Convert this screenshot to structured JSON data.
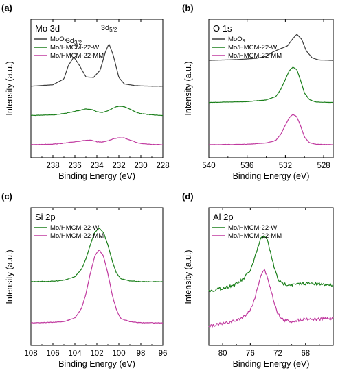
{
  "figure": {
    "colors": {
      "MoO3": "#3b3b3b",
      "WI": "#1a7f1a",
      "MM": "#c0399f"
    },
    "line_icon": "line-swatch-icon"
  },
  "chart_data": [
    {
      "panel_label": "(a)",
      "title": "Mo 3d",
      "type": "line",
      "xlabel": "Binding Energy (eV)",
      "ylabel": "Intensity (a.u.)",
      "xlim": [
        240,
        228
      ],
      "x_reversed": true,
      "x_ticks": [
        "238",
        "236",
        "234",
        "232",
        "230",
        "228"
      ],
      "y_ticks_shown": false,
      "legend": "top-left",
      "annotations": [
        {
          "text": "3d3/2",
          "main": "3d",
          "sub": "3/2",
          "x": 236.1
        },
        {
          "text": "3d5/2",
          "main": "3d",
          "sub": "5/2",
          "x": 232.9
        }
      ],
      "series": [
        {
          "name": "MoO3",
          "display_main": "MoO",
          "display_sub": "3",
          "color": "#3b3b3b",
          "x": [
            240,
            238,
            237,
            236.6,
            236.1,
            235.6,
            235.0,
            234.3,
            233.7,
            233.2,
            232.9,
            232.5,
            232.0,
            231.5,
            230.5,
            229,
            228
          ],
          "y": [
            2.0,
            2.05,
            2.25,
            2.7,
            3.0,
            2.72,
            2.32,
            2.3,
            2.55,
            3.2,
            3.45,
            3.05,
            2.3,
            2.08,
            2.02,
            2.0,
            2.0
          ]
        },
        {
          "name": "Mo/HMCM-22-WI",
          "color": "#1a7f1a",
          "x": [
            240,
            238,
            237,
            236,
            235,
            234.5,
            234,
            233.5,
            233,
            232.5,
            232,
            231.5,
            231,
            230.5,
            230,
            229,
            228
          ],
          "y": [
            1.0,
            1.02,
            1.06,
            1.14,
            1.22,
            1.2,
            1.13,
            1.1,
            1.16,
            1.26,
            1.32,
            1.3,
            1.22,
            1.12,
            1.06,
            1.02,
            1.0
          ]
        },
        {
          "name": "Mo/HMCM-22-MM",
          "color": "#c0399f",
          "x": [
            240,
            238,
            237,
            236,
            235,
            234.5,
            234,
            233.5,
            233,
            232.5,
            232,
            231.5,
            231,
            230.5,
            230,
            229,
            228
          ],
          "y": [
            0.0,
            0.02,
            0.05,
            0.1,
            0.15,
            0.15,
            0.1,
            0.09,
            0.13,
            0.2,
            0.24,
            0.23,
            0.16,
            0.09,
            0.04,
            0.01,
            0.0
          ]
        }
      ]
    },
    {
      "panel_label": "(b)",
      "title": "O 1s",
      "type": "line",
      "xlabel": "Binding Energy (eV)",
      "ylabel": "Intensity (a.u.)",
      "xlim": [
        540,
        527
      ],
      "x_reversed": true,
      "x_ticks": [
        "540",
        "536",
        "532",
        "528"
      ],
      "y_ticks_shown": false,
      "legend": "top-left",
      "series": [
        {
          "name": "MoO3",
          "display_main": "MoO",
          "display_sub": "3",
          "color": "#3b3b3b",
          "x": [
            540,
            537,
            535,
            534,
            533.3,
            532.5,
            531.8,
            531.2,
            530.8,
            530.3,
            529.8,
            529.2,
            528.5,
            527
          ],
          "y": [
            2.0,
            2.02,
            2.05,
            2.1,
            2.2,
            2.28,
            2.34,
            2.52,
            2.62,
            2.5,
            2.22,
            2.06,
            2.01,
            2.0
          ]
        },
        {
          "name": "Mo/HMCM-22-WI",
          "color": "#1a7f1a",
          "x": [
            540,
            536,
            534,
            533,
            532.5,
            532,
            531.6,
            531.2,
            530.8,
            530.4,
            530,
            529.5,
            528.8,
            527
          ],
          "y": [
            1.0,
            1.02,
            1.06,
            1.14,
            1.3,
            1.55,
            1.75,
            1.84,
            1.78,
            1.52,
            1.22,
            1.07,
            1.01,
            1.0
          ]
        },
        {
          "name": "Mo/HMCM-22-MM",
          "color": "#c0399f",
          "x": [
            540,
            536,
            534,
            533,
            532.5,
            532,
            531.6,
            531.2,
            530.8,
            530.4,
            530,
            529.5,
            528.8,
            527
          ],
          "y": [
            0.0,
            0.01,
            0.04,
            0.1,
            0.24,
            0.46,
            0.64,
            0.72,
            0.66,
            0.44,
            0.18,
            0.05,
            0.01,
            0.0
          ]
        }
      ]
    },
    {
      "panel_label": "(c)",
      "title": "Si 2p",
      "type": "line",
      "xlabel": "Binding Energy (eV)",
      "ylabel": "Intensity (a.u.)",
      "xlim": [
        108,
        96
      ],
      "x_reversed": true,
      "x_ticks": [
        "108",
        "106",
        "104",
        "102",
        "100",
        "98",
        "96"
      ],
      "y_ticks_shown": false,
      "legend": "top-left",
      "series": [
        {
          "name": "Mo/HMCM-22-WI",
          "color": "#1a7f1a",
          "x": [
            108,
            106,
            105,
            104,
            103.4,
            103,
            102.6,
            102.2,
            101.8,
            101.4,
            101,
            100.6,
            100.2,
            99.8,
            99,
            98,
            96
          ],
          "y": [
            1.0,
            1.01,
            1.04,
            1.12,
            1.3,
            1.55,
            1.9,
            2.2,
            2.3,
            2.2,
            1.9,
            1.5,
            1.2,
            1.07,
            1.02,
            1.0,
            1.0
          ]
        },
        {
          "name": "Mo/HMCM-22-MM",
          "color": "#c0399f",
          "x": [
            108,
            106,
            105,
            104,
            103.4,
            103,
            102.6,
            102.2,
            101.8,
            101.4,
            101,
            100.6,
            100.2,
            99.8,
            99,
            98,
            96
          ],
          "y": [
            0.0,
            0.01,
            0.03,
            0.12,
            0.35,
            0.7,
            1.2,
            1.62,
            1.78,
            1.62,
            1.2,
            0.68,
            0.3,
            0.1,
            0.03,
            0.0,
            0.0
          ]
        }
      ]
    },
    {
      "panel_label": "(d)",
      "title": "Al 2p",
      "type": "line",
      "xlabel": "Binding Energy (eV)",
      "ylabel": "Intensity (a.u.)",
      "xlim": [
        82,
        64
      ],
      "x_reversed": true,
      "x_ticks": [
        "80",
        "76",
        "72",
        "68"
      ],
      "y_ticks_shown": false,
      "legend": "top-left",
      "series": [
        {
          "name": "Mo/HMCM-22-WI",
          "color": "#1a7f1a",
          "x": [
            82,
            80,
            78,
            77,
            76,
            75.5,
            75,
            74.5,
            74,
            73.5,
            73,
            72.5,
            72,
            71.5,
            71,
            70,
            68,
            66,
            64
          ],
          "y": [
            1.0,
            1.08,
            1.2,
            1.35,
            1.6,
            1.85,
            2.2,
            2.5,
            2.62,
            2.45,
            2.05,
            1.65,
            1.35,
            1.22,
            1.2,
            1.18,
            1.22,
            1.2,
            1.18
          ]
        },
        {
          "name": "Mo/HMCM-22-MM",
          "color": "#c0399f",
          "x": [
            82,
            80,
            78,
            77,
            76,
            75.5,
            75,
            74.5,
            74,
            73.5,
            73,
            72.5,
            72,
            71.5,
            71,
            70,
            68,
            66,
            64
          ],
          "y": [
            0.0,
            0.05,
            0.15,
            0.25,
            0.45,
            0.7,
            1.05,
            1.45,
            1.62,
            1.4,
            1.0,
            0.65,
            0.35,
            0.2,
            0.15,
            0.12,
            0.2,
            0.18,
            0.22
          ]
        }
      ]
    }
  ]
}
